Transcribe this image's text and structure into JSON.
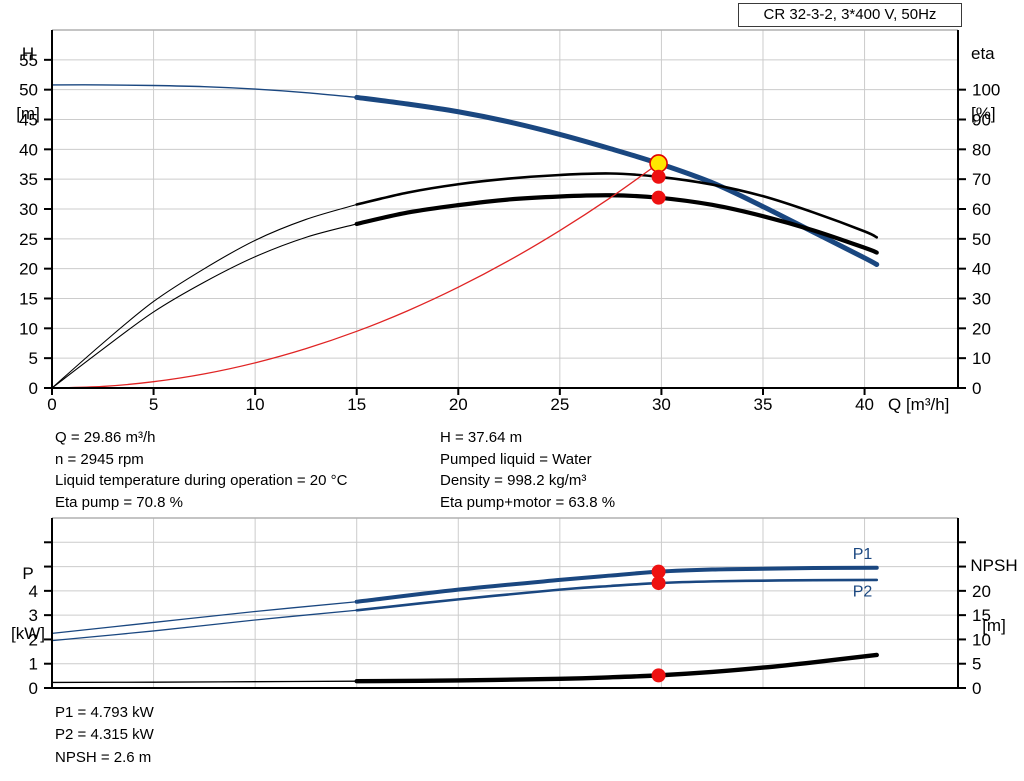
{
  "title_box": "CR 32-3-2, 3*400 V, 50Hz",
  "colors": {
    "curve_blue": "#1a4780",
    "curve_black": "#000000",
    "curve_red": "#e02424",
    "dot_red": "#ee1111",
    "dot_yellow": "#ffe600",
    "grid": "#cccccc",
    "border": "#b0b0b0",
    "axis": "#000000"
  },
  "info_top": {
    "left": [
      "Q = 29.86 m³/h",
      "n = 2945 rpm",
      "Liquid temperature during operation = 20 °C",
      "Eta pump = 70.8 %"
    ],
    "right": [
      "H = 37.64 m",
      "Pumped liquid = Water",
      "Density = 998.2 kg/m³",
      "Eta pump+motor = 63.8 %"
    ]
  },
  "info_bottom": [
    "P1 = 4.793 kW",
    "P2 = 4.315 kW",
    "NPSH = 2.6 m"
  ],
  "chart_data": [
    {
      "type": "line",
      "title": "CR 32-3-2, 3*400 V, 50Hz",
      "grid": true,
      "x_axis": {
        "label": "Q [m³/h]",
        "min": 0,
        "max": 44.6,
        "ticks": [
          0,
          5,
          10,
          15,
          20,
          25,
          30,
          35,
          40
        ],
        "tick_marks": true,
        "show_tick_labels": true
      },
      "y_left": {
        "label": "H [m]",
        "label_lines": [
          "H",
          "[m]"
        ],
        "min": 0,
        "max": 60,
        "ticks": [
          0,
          5,
          10,
          15,
          20,
          25,
          30,
          35,
          40,
          45,
          50,
          55
        ],
        "label_upto": 55
      },
      "y_right": {
        "label": "eta [%]",
        "label_lines": [
          "eta",
          "[%]"
        ],
        "min": 0,
        "max": 120,
        "ticks": [
          0,
          10,
          20,
          30,
          40,
          50,
          60,
          70,
          80,
          90,
          100
        ],
        "label_upto": 100
      },
      "series": [
        {
          "name": "H pump curve",
          "axis": "left",
          "color": "#1a4780",
          "thin": 1.4,
          "thick": 5,
          "split_at": 15,
          "points": [
            [
              0,
              50.8
            ],
            [
              2.5,
              50.8
            ],
            [
              5,
              50.7
            ],
            [
              7.5,
              50.5
            ],
            [
              10,
              50.1
            ],
            [
              12.5,
              49.5
            ],
            [
              15,
              48.7
            ],
            [
              17.5,
              47.6
            ],
            [
              20,
              46.3
            ],
            [
              22.5,
              44.6
            ],
            [
              25,
              42.5
            ],
            [
              27.5,
              40.1
            ],
            [
              29.86,
              37.64
            ],
            [
              32.5,
              34.4
            ],
            [
              35,
              30.4
            ],
            [
              37.5,
              26.1
            ],
            [
              40,
              21.8
            ],
            [
              40.6,
              20.7
            ]
          ]
        },
        {
          "name": "Eta pump",
          "axis": "right",
          "color": "#000000",
          "thin": 1.1,
          "thick": 2.6,
          "split_at": 15,
          "points": [
            [
              0,
              0
            ],
            [
              2.5,
              15
            ],
            [
              5,
              29
            ],
            [
              7.5,
              40
            ],
            [
              10,
              49.5
            ],
            [
              12.5,
              56.5
            ],
            [
              15,
              61.5
            ],
            [
              17.5,
              65.5
            ],
            [
              20,
              68.3
            ],
            [
              22.5,
              70.2
            ],
            [
              25,
              71.4
            ],
            [
              27.5,
              71.9
            ],
            [
              29.86,
              70.8
            ],
            [
              32.5,
              68.2
            ],
            [
              35,
              64.3
            ],
            [
              37.5,
              58.8
            ],
            [
              40,
              52.5
            ],
            [
              40.6,
              50.5
            ]
          ]
        },
        {
          "name": "Eta pump+motor",
          "axis": "right",
          "color": "#000000",
          "thin": 1.1,
          "thick": 4.2,
          "split_at": 15,
          "points": [
            [
              0,
              0
            ],
            [
              2.5,
              13
            ],
            [
              5,
              25.5
            ],
            [
              7.5,
              35.5
            ],
            [
              10,
              44
            ],
            [
              12.5,
              50.5
            ],
            [
              15,
              55
            ],
            [
              17.5,
              58.8
            ],
            [
              20,
              61.3
            ],
            [
              22.5,
              63.2
            ],
            [
              25,
              64.2
            ],
            [
              27.5,
              64.6
            ],
            [
              29.86,
              63.8
            ],
            [
              32.5,
              61.4
            ],
            [
              35,
              57.6
            ],
            [
              37.5,
              52.8
            ],
            [
              40,
              47
            ],
            [
              40.6,
              45.4
            ]
          ]
        },
        {
          "name": "System curve",
          "axis": "left",
          "color": "#e02424",
          "thin": 1.3,
          "thick": 1.3,
          "split_at": null,
          "points": [
            [
              0,
              0
            ],
            [
              2.5,
              0.26
            ],
            [
              5,
              1.06
            ],
            [
              7.5,
              2.37
            ],
            [
              10,
              4.22
            ],
            [
              12.5,
              6.6
            ],
            [
              15,
              9.5
            ],
            [
              17.5,
              12.93
            ],
            [
              20,
              16.89
            ],
            [
              22.5,
              21.37
            ],
            [
              25,
              26.39
            ],
            [
              27.5,
              31.92
            ],
            [
              29.86,
              37.64
            ]
          ]
        }
      ],
      "markers": [
        {
          "name": "duty-point",
          "x": 29.86,
          "y": 37.64,
          "axis": "left",
          "r": 8.5,
          "fill": "#ffe600",
          "stroke": "#e00000"
        },
        {
          "name": "eta-pump-point",
          "x": 29.86,
          "y": 70.8,
          "axis": "right",
          "r": 7,
          "fill": "#ee1111"
        },
        {
          "name": "eta-pump-motor-point",
          "x": 29.86,
          "y": 63.8,
          "axis": "right",
          "r": 7,
          "fill": "#ee1111"
        }
      ],
      "series_labels": []
    },
    {
      "type": "line",
      "title": "",
      "grid": true,
      "x_axis": {
        "label": "",
        "min": 0,
        "max": 44.6,
        "ticks": [
          5,
          10,
          15,
          20,
          25,
          30,
          35,
          40
        ],
        "tick_marks": false,
        "show_tick_labels": false
      },
      "y_left": {
        "label": "P [kW]",
        "label_lines": [
          "P",
          "[kW]"
        ],
        "min": 0,
        "max": 7,
        "ticks": [
          0,
          1,
          2,
          3,
          4,
          5,
          6
        ],
        "label_upto": 4
      },
      "y_right": {
        "label": "NPSH [m]",
        "label_lines": [
          "NPSH",
          "[m]"
        ],
        "min": 0,
        "max": 35,
        "ticks": [
          0,
          5,
          10,
          15,
          20,
          25,
          30
        ],
        "label_upto": 20
      },
      "series": [
        {
          "name": "P1",
          "axis": "left",
          "color": "#1a4780",
          "thin": 1.3,
          "thick": 4,
          "split_at": 15,
          "points": [
            [
              0,
              2.25
            ],
            [
              5,
              2.7
            ],
            [
              10,
              3.15
            ],
            [
              15,
              3.55
            ],
            [
              20,
              4.05
            ],
            [
              25,
              4.45
            ],
            [
              27.5,
              4.63
            ],
            [
              29.86,
              4.79
            ],
            [
              32.5,
              4.88
            ],
            [
              35,
              4.91
            ],
            [
              37.5,
              4.94
            ],
            [
              40.6,
              4.95
            ]
          ]
        },
        {
          "name": "P2",
          "axis": "left",
          "color": "#1a4780",
          "thin": 1.3,
          "thick": 2.6,
          "split_at": 15,
          "points": [
            [
              0,
              1.95
            ],
            [
              5,
              2.35
            ],
            [
              10,
              2.8
            ],
            [
              15,
              3.2
            ],
            [
              20,
              3.65
            ],
            [
              25,
              4.05
            ],
            [
              27.5,
              4.2
            ],
            [
              29.86,
              4.32
            ],
            [
              32.5,
              4.39
            ],
            [
              35,
              4.42
            ],
            [
              37.5,
              4.44
            ],
            [
              40.6,
              4.45
            ]
          ]
        },
        {
          "name": "NPSH",
          "axis": "right",
          "color": "#000000",
          "thin": 1.3,
          "thick": 4.4,
          "split_at": 15,
          "points": [
            [
              0,
              1.15
            ],
            [
              5,
              1.2
            ],
            [
              10,
              1.3
            ],
            [
              15,
              1.4
            ],
            [
              20,
              1.55
            ],
            [
              25,
              1.9
            ],
            [
              27.5,
              2.2
            ],
            [
              29.86,
              2.6
            ],
            [
              32.5,
              3.3
            ],
            [
              35,
              4.2
            ],
            [
              37.5,
              5.3
            ],
            [
              40.6,
              6.8
            ]
          ]
        }
      ],
      "markers": [
        {
          "name": "p1-point",
          "x": 29.86,
          "y": 4.79,
          "axis": "left",
          "r": 7,
          "fill": "#ee1111"
        },
        {
          "name": "p2-point",
          "x": 29.86,
          "y": 4.32,
          "axis": "left",
          "r": 7,
          "fill": "#ee1111"
        },
        {
          "name": "npsh-point",
          "x": 29.86,
          "y": 2.6,
          "axis": "right",
          "r": 7,
          "fill": "#ee1111"
        }
      ],
      "series_labels": [
        {
          "text": "P1",
          "x": 39.9,
          "y": 5.55,
          "axis": "left",
          "color": "#1a4780"
        },
        {
          "text": "P2",
          "x": 39.9,
          "y": 4.02,
          "axis": "left",
          "color": "#1a4780"
        }
      ]
    }
  ]
}
